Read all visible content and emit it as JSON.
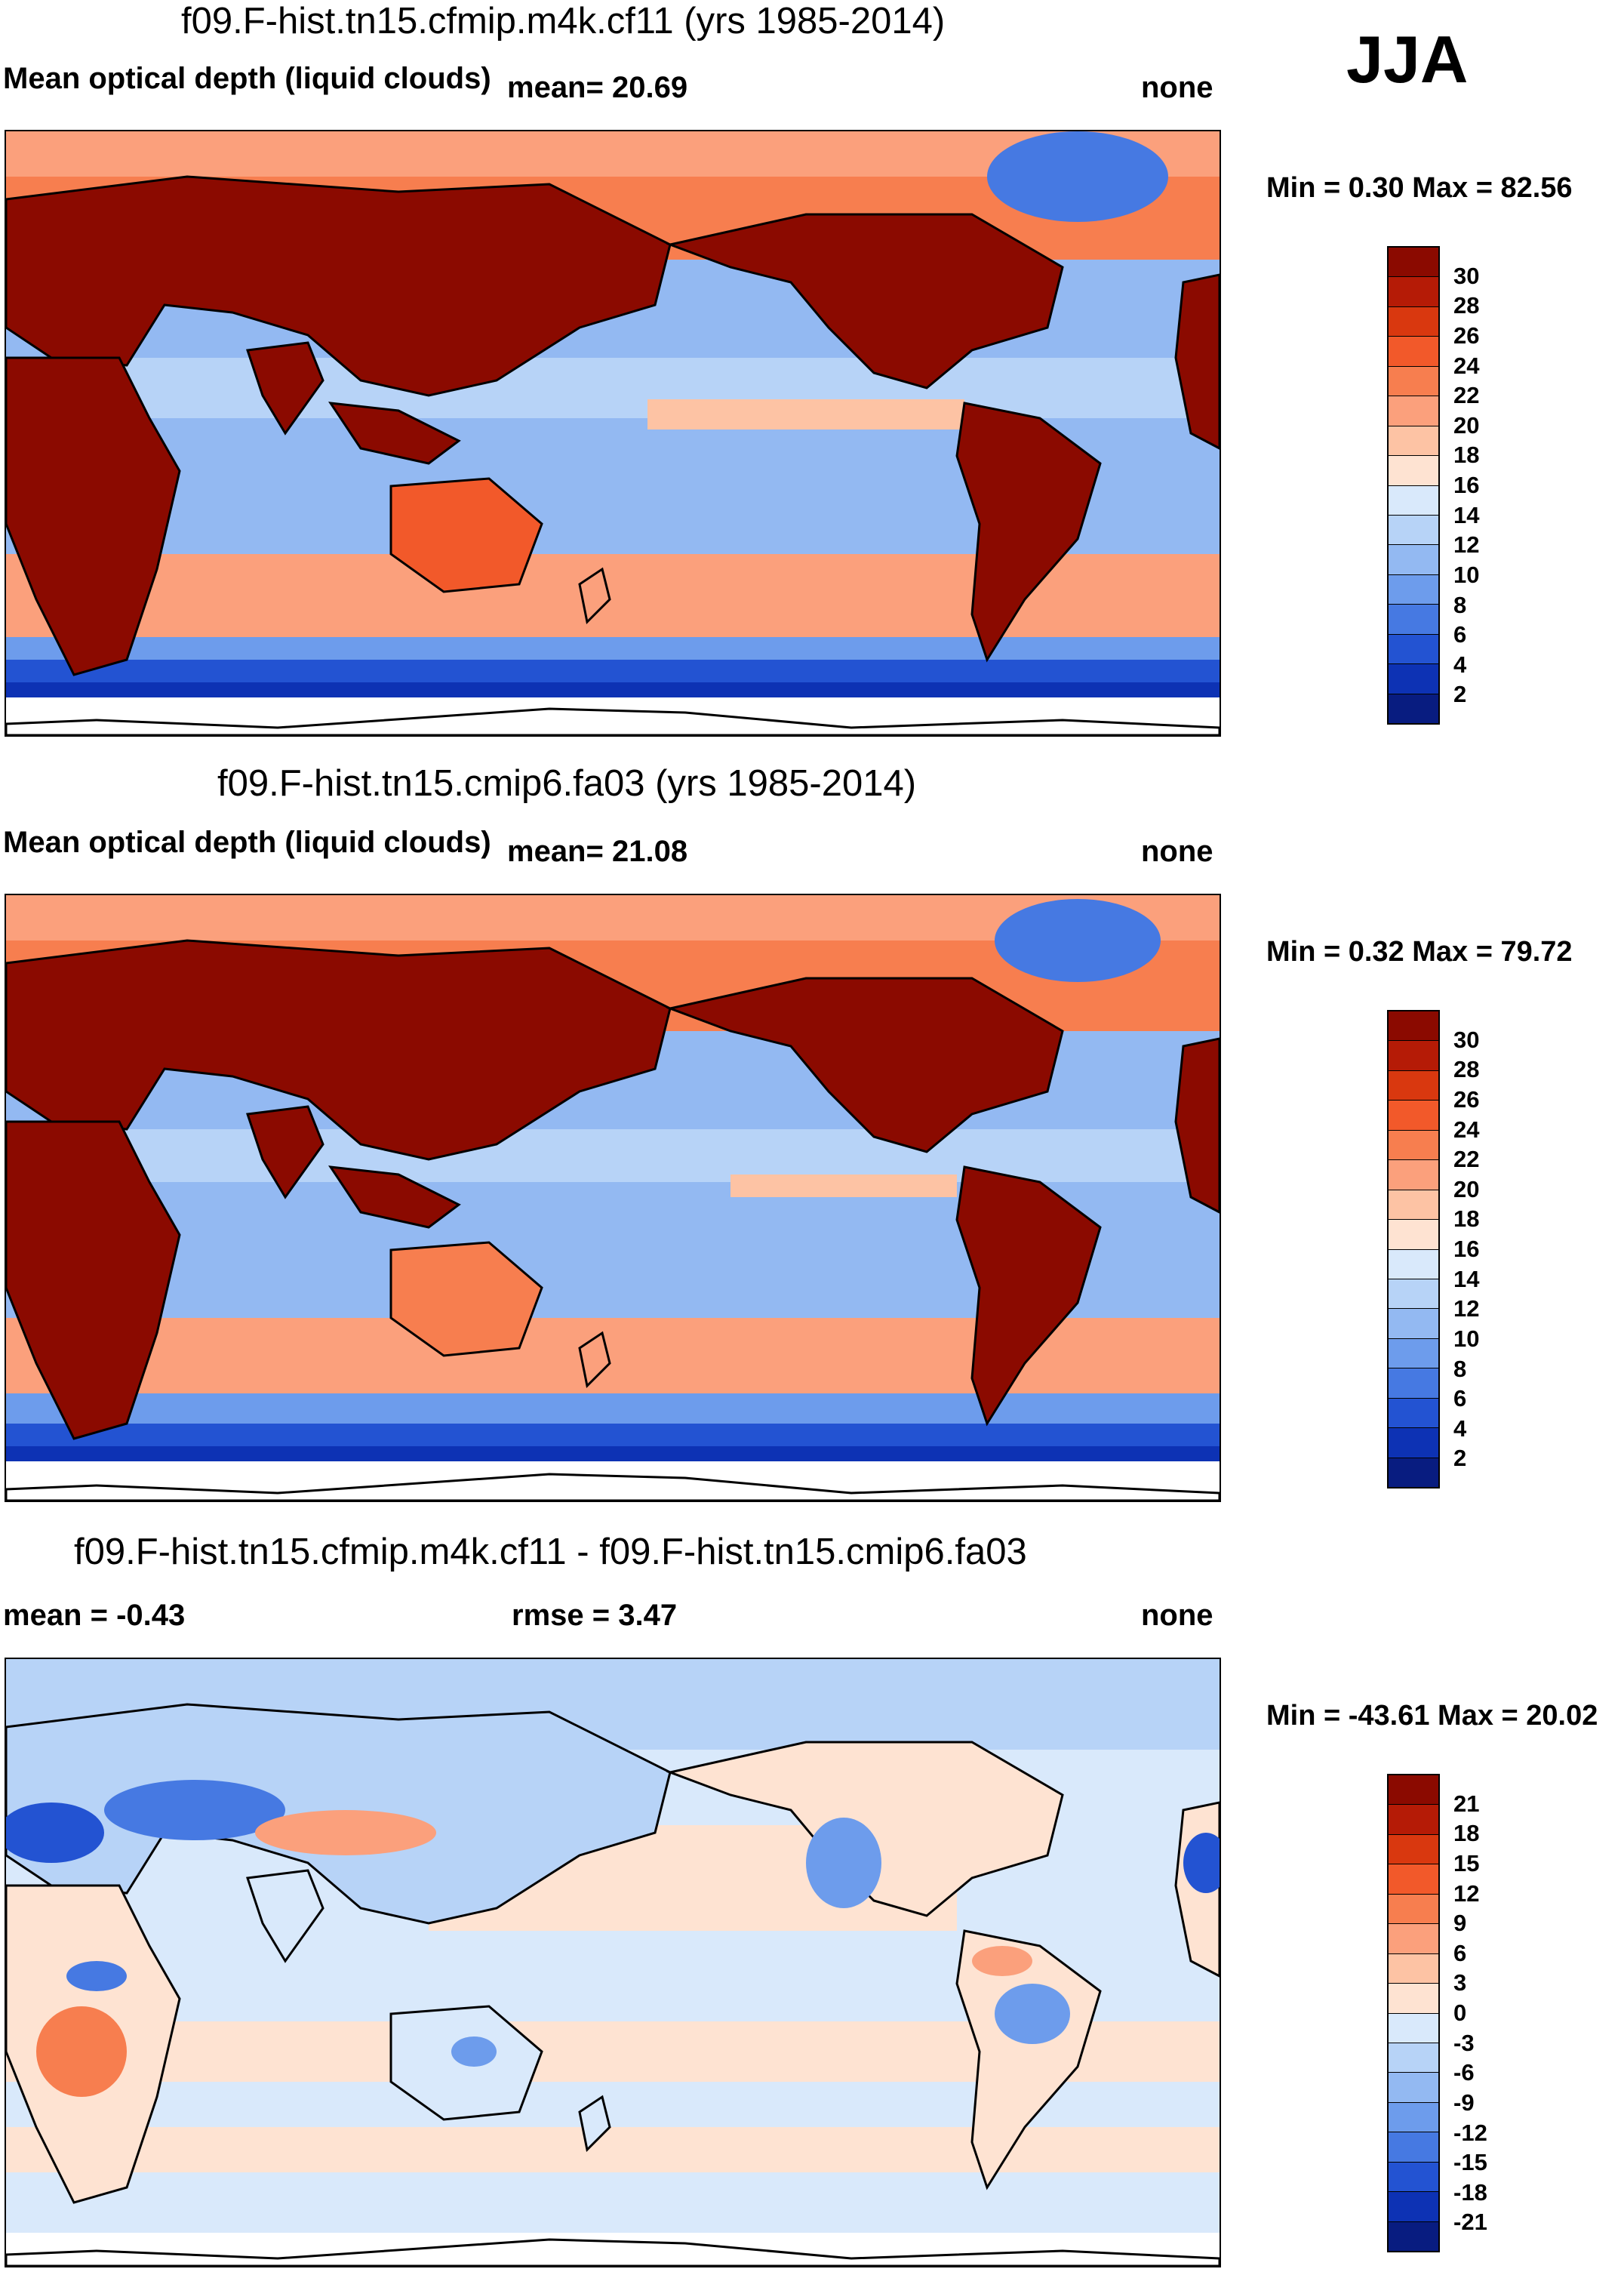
{
  "season": "JJA",
  "panels": [
    {
      "id": "p1",
      "title": "f09.F-hist.tn15.cfmip.m4k.cf11 (yrs 1985-2014)",
      "left_label": "Mean optical depth (liquid clouds)",
      "center_label": "mean=  20.69",
      "right_label": "none",
      "minmax": "Min =   0.30 Max =  82.56",
      "colorbar_labels": [
        "30",
        "28",
        "26",
        "24",
        "22",
        "20",
        "18",
        "16",
        "14",
        "12",
        "10",
        "8",
        "6",
        "4",
        "2"
      ],
      "colorbar_colors": [
        "#8b0a00",
        "#b51b06",
        "#d9380f",
        "#f2592a",
        "#f77e4f",
        "#fba07c",
        "#fdc3a4",
        "#fee3d2",
        "#d9e9fb",
        "#b7d3f7",
        "#93b9f2",
        "#6d9cec",
        "#4679e2",
        "#2353d2",
        "#0d32b4",
        "#081c80"
      ]
    },
    {
      "id": "p2",
      "title": "f09.F-hist.tn15.cmip6.fa03 (yrs 1985-2014)",
      "left_label": "Mean optical depth (liquid clouds)",
      "center_label": "mean=  21.08",
      "right_label": "none",
      "minmax": "Min =   0.32 Max =  79.72",
      "colorbar_labels": [
        "30",
        "28",
        "26",
        "24",
        "22",
        "20",
        "18",
        "16",
        "14",
        "12",
        "10",
        "8",
        "6",
        "4",
        "2"
      ],
      "colorbar_colors": [
        "#8b0a00",
        "#b51b06",
        "#d9380f",
        "#f2592a",
        "#f77e4f",
        "#fba07c",
        "#fdc3a4",
        "#fee3d2",
        "#d9e9fb",
        "#b7d3f7",
        "#93b9f2",
        "#6d9cec",
        "#4679e2",
        "#2353d2",
        "#0d32b4",
        "#081c80"
      ]
    },
    {
      "id": "p3",
      "title": "f09.F-hist.tn15.cfmip.m4k.cf11 - f09.F-hist.tn15.cmip6.fa03",
      "left_label": "mean =  -0.43",
      "center_label": "rmse =   3.47",
      "right_label": "none",
      "minmax": "Min = -43.61 Max =  20.02",
      "colorbar_labels": [
        "21",
        "18",
        "15",
        "12",
        "9",
        "6",
        "3",
        "0",
        "-3",
        "-6",
        "-9",
        "-12",
        "-15",
        "-18",
        "-21"
      ],
      "colorbar_colors": [
        "#8b0a00",
        "#b51b06",
        "#d9380f",
        "#f2592a",
        "#f77e4f",
        "#fba07c",
        "#fdc3a4",
        "#fee3d2",
        "#d9e9fb",
        "#b7d3f7",
        "#93b9f2",
        "#6d9cec",
        "#4679e2",
        "#2353d2",
        "#0d32b4",
        "#081c80"
      ]
    }
  ],
  "colors": {
    "land_high": "#8b0a00",
    "ocean_mid": "#93b9f2",
    "ocean_low": "#2353d2",
    "ocean_warm": "#fba07c",
    "diff_neutral": "#fde6d6",
    "diff_cool": "#cfe0f8",
    "coast": "#000000"
  }
}
